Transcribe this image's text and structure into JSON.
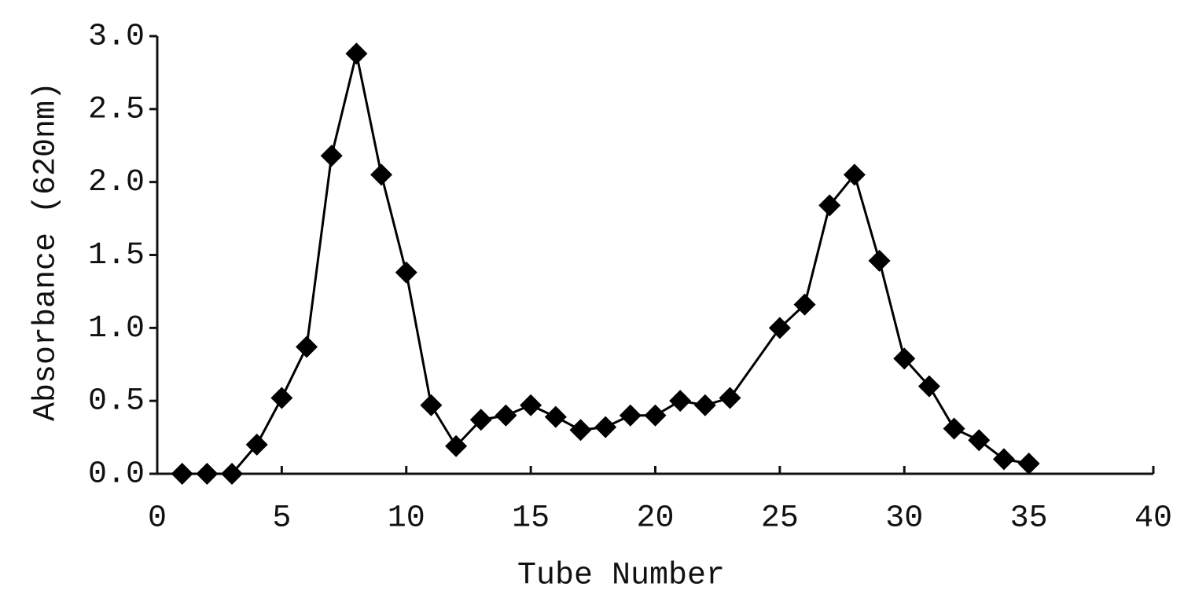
{
  "chart_data": {
    "type": "line",
    "x_label": "Tube Number",
    "y_label": "Absorbance (620nm)",
    "x": [
      1,
      2,
      3,
      4,
      5,
      6,
      7,
      8,
      9,
      10,
      11,
      12,
      13,
      14,
      15,
      16,
      17,
      18,
      19,
      20,
      21,
      22,
      23,
      25,
      26,
      27,
      28,
      29,
      30,
      31,
      32,
      33,
      34,
      35
    ],
    "series": [
      {
        "color": "#000000",
        "marker": "diamond",
        "values": [
          0.0,
          0.0,
          0.0,
          0.2,
          0.52,
          0.87,
          2.18,
          2.88,
          2.05,
          1.38,
          0.47,
          0.19,
          0.37,
          0.4,
          0.47,
          0.39,
          0.3,
          0.32,
          0.4,
          0.4,
          0.5,
          0.47,
          0.52,
          1.0,
          1.16,
          1.84,
          2.05,
          1.46,
          0.79,
          0.6,
          0.31,
          0.23,
          0.1,
          0.07
        ]
      }
    ],
    "xlim": [
      0,
      40
    ],
    "xticks": [
      0,
      5,
      10,
      15,
      20,
      25,
      30,
      35,
      40
    ],
    "ylim": [
      0,
      3
    ],
    "yticks": [
      {
        "value": 0,
        "label": "0.0"
      },
      0.5,
      {
        "value": 1,
        "label": "1.0"
      },
      1.5,
      {
        "value": 2,
        "label": "2.0"
      },
      2.5,
      {
        "value": 3,
        "label": "3.0"
      }
    ]
  }
}
